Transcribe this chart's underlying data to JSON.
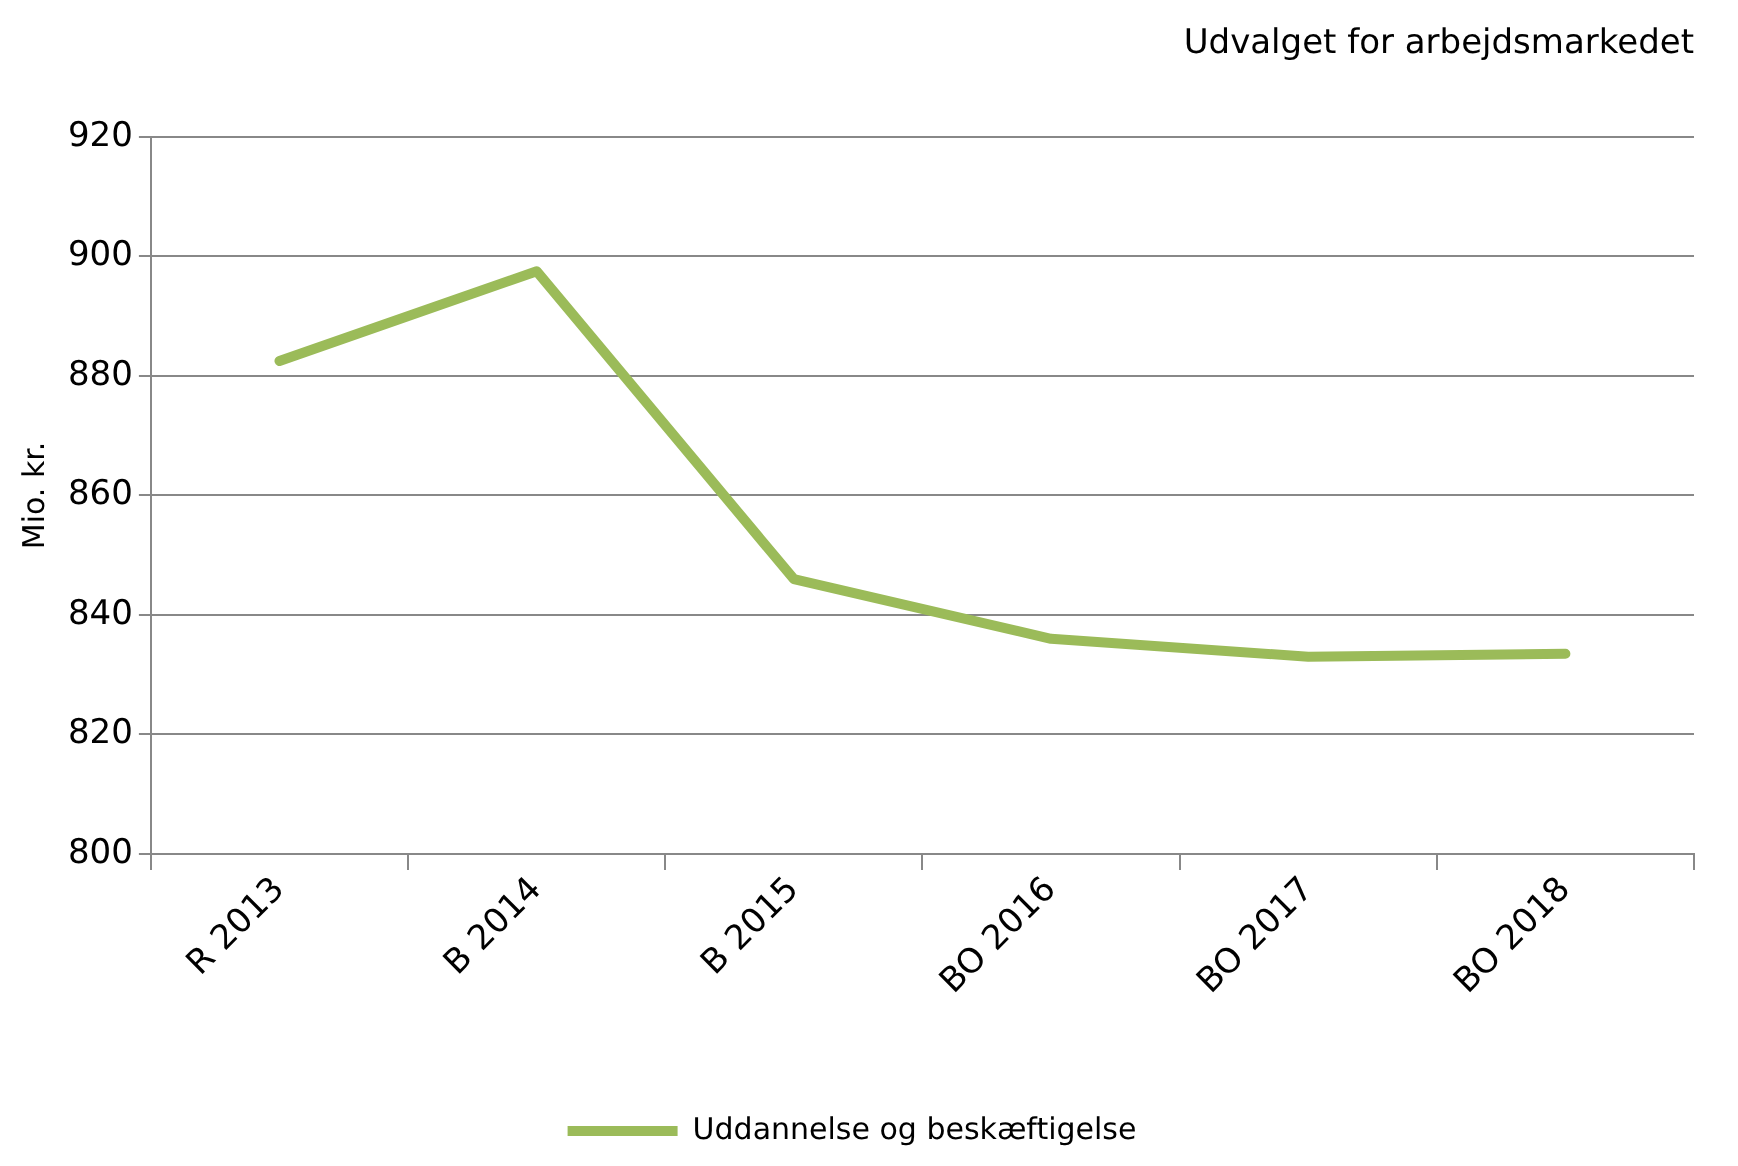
{
  "chart_data": {
    "type": "line",
    "title": "Udvalget for arbejdsmarkedet",
    "ylabel": "Mio. kr.",
    "categories": [
      "R 2013",
      "B 2014",
      "B 2015",
      "BO 2016",
      "BO 2017",
      "BO 2018"
    ],
    "series": [
      {
        "name": "Uddannelse og beskæftigelse",
        "color": "#9bbb59",
        "values": [
          882.5,
          897.5,
          846,
          836,
          833,
          833.5
        ]
      }
    ],
    "ylim": [
      800,
      920
    ],
    "yticks": [
      800,
      820,
      840,
      860,
      880,
      900,
      920
    ],
    "grid": "y",
    "legend": "bottom",
    "marker": "none",
    "line_style": "solid"
  }
}
